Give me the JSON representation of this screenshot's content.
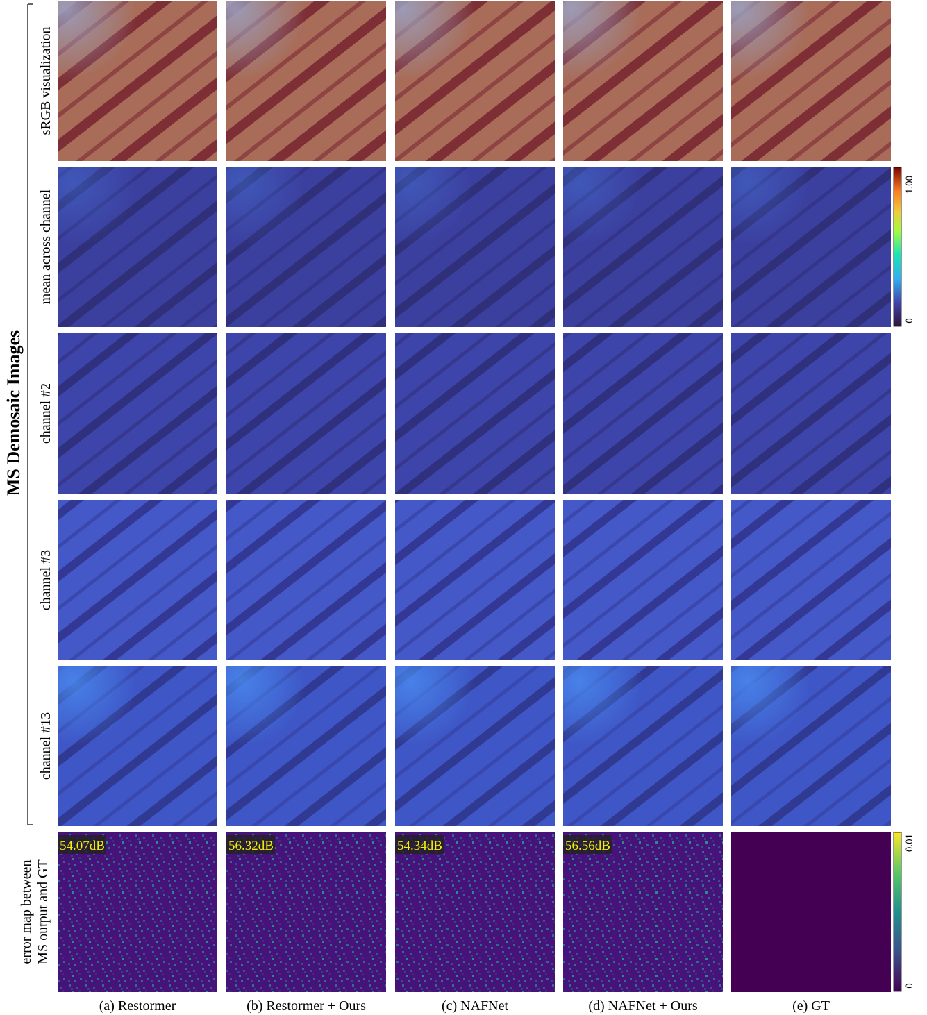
{
  "figure": {
    "title": "MS Demosaic Images",
    "row_labels": [
      "sRGB visualization",
      "mean across channel",
      "channel #2",
      "channel #3",
      "channel #13",
      [
        "error map between",
        "MS output and GT"
      ]
    ],
    "columns": [
      "(a) Restormer",
      "(b) Restormer + Ours",
      "(c) NAFNet",
      "(d) NAFNet + Ours",
      "(e) GT"
    ],
    "psnr": [
      "54.07dB",
      "56.32dB",
      "54.34dB",
      "56.56dB"
    ],
    "colorbars": [
      {
        "max": "1.00",
        "min": "0"
      },
      {
        "max": "0.01",
        "min": "0"
      }
    ]
  }
}
